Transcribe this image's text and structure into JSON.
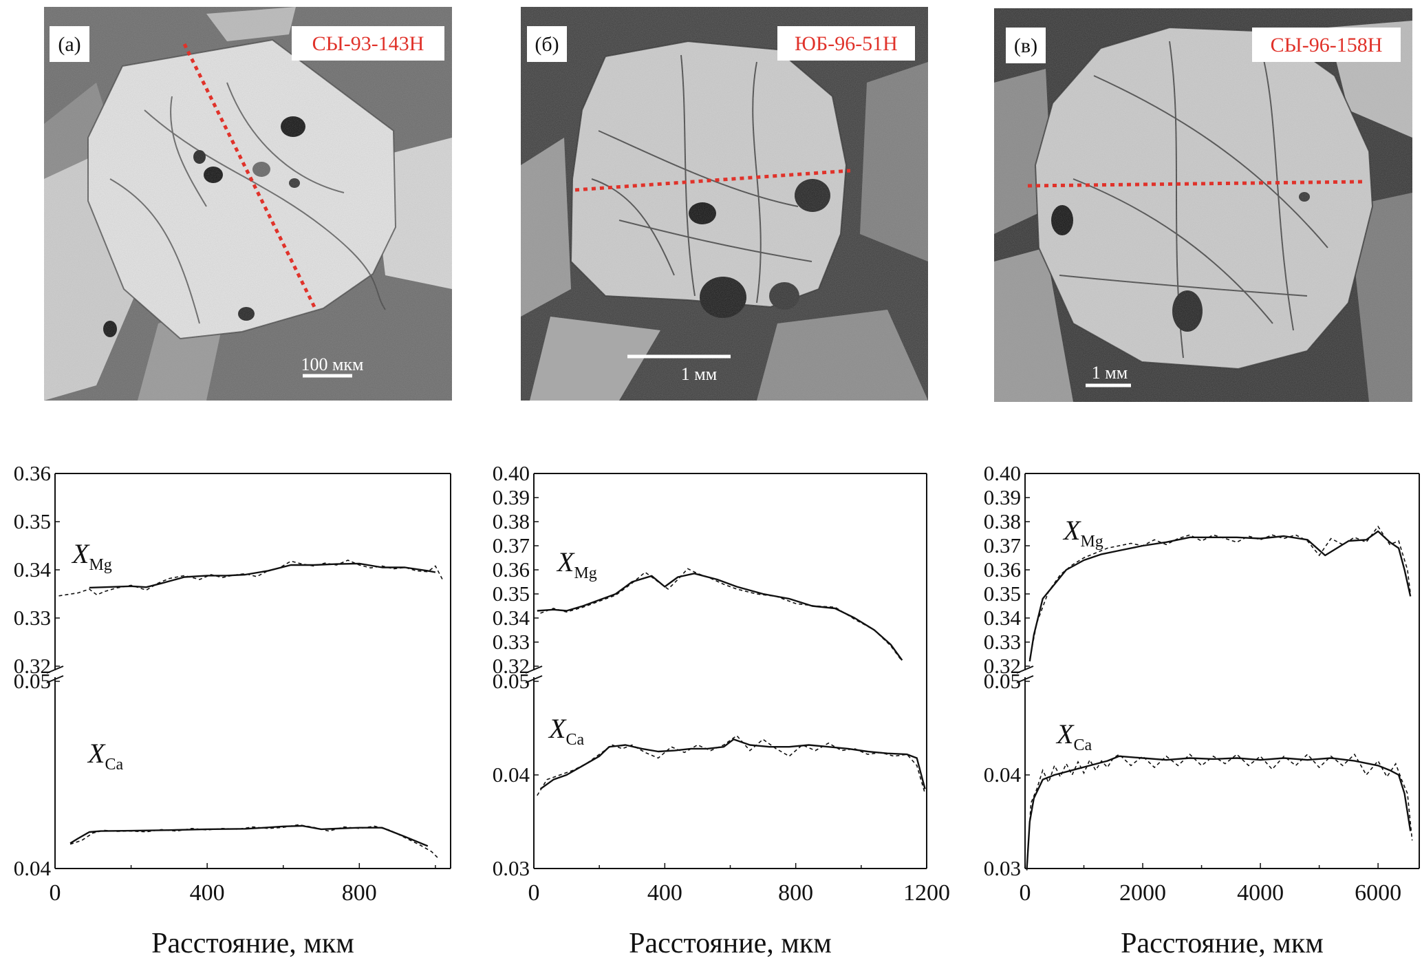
{
  "photos": [
    {
      "panel": "(а)",
      "sample": "СЫ-93-143Н",
      "scale": "100 мкм"
    },
    {
      "panel": "(б)",
      "sample": "ЮБ-96-51Н",
      "scale": "1 мм"
    },
    {
      "panel": "(в)",
      "sample": "СЫ-96-158Н",
      "scale": "1 мм"
    }
  ],
  "chart_data": [
    {
      "type": "line",
      "xlabel": "Расстояние, мкм",
      "xlim": [
        0,
        1040
      ],
      "xticks": [
        0,
        400,
        800
      ],
      "upper": {
        "ylim": [
          0.32,
          0.36
        ],
        "yticks": [
          "0.32",
          "0.33",
          "0.34",
          "0.35",
          "0.36"
        ]
      },
      "lower": {
        "ylim": [
          0.04,
          0.05
        ],
        "yticks": [
          "0.04",
          "0.05"
        ]
      },
      "series": [
        {
          "name": "XMg",
          "axis": "upper",
          "label": "X",
          "sub": "Mg",
          "x": [
            90,
            130,
            200,
            240,
            280,
            340,
            400,
            450,
            500,
            560,
            620,
            680,
            740,
            800,
            860,
            920,
            980,
            1000
          ],
          "solid": [
            0.3363,
            0.3364,
            0.3366,
            0.3364,
            0.3372,
            0.3385,
            0.3388,
            0.3388,
            0.339,
            0.3398,
            0.341,
            0.341,
            0.3412,
            0.3413,
            0.3405,
            0.3405,
            0.3398,
            0.3395
          ],
          "dashed_x": [
            10,
            60,
            90,
            110,
            130,
            160,
            200,
            240,
            270,
            300,
            340,
            380,
            410,
            440,
            470,
            500,
            530,
            560,
            590,
            620,
            650,
            680,
            710,
            740,
            770,
            800,
            830,
            860,
            890,
            920,
            950,
            980,
            1000,
            1020
          ],
          "dashed": [
            0.3346,
            0.3352,
            0.336,
            0.3348,
            0.3355,
            0.3362,
            0.3368,
            0.3358,
            0.3372,
            0.3382,
            0.3388,
            0.338,
            0.339,
            0.3384,
            0.3389,
            0.3392,
            0.3386,
            0.3398,
            0.3404,
            0.3418,
            0.3412,
            0.3408,
            0.3414,
            0.341,
            0.342,
            0.341,
            0.3404,
            0.3408,
            0.3402,
            0.3405,
            0.3398,
            0.3396,
            0.3408,
            0.3378
          ]
        },
        {
          "name": "XCa",
          "axis": "lower",
          "label": "X",
          "sub": "Ca",
          "x": [
            40,
            60,
            90,
            120,
            200,
            300,
            400,
            500,
            550,
            600,
            650,
            700,
            760,
            800,
            860,
            920,
            980
          ],
          "solid": [
            0.04135,
            0.0416,
            0.04195,
            0.042,
            0.04202,
            0.04205,
            0.0421,
            0.04212,
            0.04218,
            0.04225,
            0.04228,
            0.0421,
            0.04215,
            0.04218,
            0.04218,
            0.0417,
            0.0412
          ],
          "dashed_x": [
            40,
            70,
            100,
            130,
            160,
            200,
            240,
            280,
            320,
            360,
            400,
            440,
            480,
            520,
            560,
            600,
            640,
            680,
            720,
            760,
            800,
            840,
            880,
            920,
            960,
            990,
            1010
          ],
          "dashed": [
            0.0413,
            0.0415,
            0.0419,
            0.04204,
            0.04198,
            0.042,
            0.04196,
            0.04208,
            0.042,
            0.04214,
            0.04206,
            0.04214,
            0.0421,
            0.04222,
            0.04214,
            0.0422,
            0.04234,
            0.0422,
            0.042,
            0.04222,
            0.04214,
            0.04226,
            0.04205,
            0.04165,
            0.04125,
            0.0409,
            0.0405
          ]
        }
      ]
    },
    {
      "type": "line",
      "xlabel": "Расстояние, мкм",
      "xlim": [
        0,
        1200
      ],
      "xticks": [
        0,
        400,
        800,
        1200
      ],
      "upper": {
        "ylim": [
          0.32,
          0.4
        ],
        "yticks": [
          "0.32",
          "0.33",
          "0.34",
          "0.35",
          "0.36",
          "0.37",
          "0.38",
          "0.39",
          "0.40"
        ]
      },
      "lower": {
        "ylim": [
          0.03,
          0.05
        ],
        "yticks": [
          "0.03",
          "0.04",
          "0.05"
        ]
      },
      "series": [
        {
          "name": "XMg",
          "axis": "upper",
          "label": "X",
          "sub": "Mg",
          "x": [
            10,
            60,
            100,
            150,
            200,
            250,
            300,
            360,
            400,
            440,
            490,
            560,
            620,
            700,
            780,
            850,
            920,
            980,
            1040,
            1090,
            1125
          ],
          "solid": [
            0.343,
            0.3435,
            0.343,
            0.345,
            0.3475,
            0.35,
            0.355,
            0.3575,
            0.353,
            0.357,
            0.3585,
            0.356,
            0.353,
            0.35,
            0.348,
            0.345,
            0.344,
            0.34,
            0.335,
            0.329,
            0.3225
          ],
          "dashed_x": [
            20,
            60,
            100,
            150,
            200,
            250,
            300,
            340,
            380,
            410,
            440,
            470,
            500,
            540,
            580,
            620,
            680,
            740,
            800,
            860,
            920,
            980,
            1040,
            1090,
            1120
          ],
          "dashed": [
            0.342,
            0.344,
            0.3425,
            0.3445,
            0.347,
            0.3495,
            0.3545,
            0.359,
            0.355,
            0.352,
            0.356,
            0.3605,
            0.3585,
            0.3565,
            0.354,
            0.352,
            0.35,
            0.349,
            0.346,
            0.345,
            0.3445,
            0.3395,
            0.335,
            0.3285,
            0.323
          ]
        },
        {
          "name": "XCa",
          "axis": "lower",
          "label": "X",
          "sub": "Ca",
          "x": [
            20,
            60,
            100,
            150,
            200,
            230,
            280,
            330,
            380,
            430,
            480,
            530,
            580,
            610,
            660,
            720,
            780,
            840,
            900,
            960,
            1020,
            1080,
            1140,
            1170,
            1195
          ],
          "solid": [
            0.0385,
            0.0395,
            0.04,
            0.041,
            0.042,
            0.043,
            0.0432,
            0.0428,
            0.0425,
            0.0426,
            0.0428,
            0.0428,
            0.043,
            0.0438,
            0.0432,
            0.043,
            0.043,
            0.0432,
            0.043,
            0.0428,
            0.0425,
            0.0423,
            0.0422,
            0.0418,
            0.0385
          ],
          "dashed_x": [
            10,
            40,
            80,
            120,
            160,
            200,
            240,
            270,
            300,
            340,
            380,
            420,
            460,
            500,
            540,
            580,
            620,
            660,
            700,
            740,
            780,
            820,
            860,
            900,
            940,
            980,
            1020,
            1060,
            1100,
            1140,
            1170,
            1195
          ],
          "dashed": [
            0.0378,
            0.0395,
            0.04,
            0.0405,
            0.0412,
            0.0422,
            0.0432,
            0.0428,
            0.0432,
            0.0424,
            0.0418,
            0.043,
            0.0424,
            0.0432,
            0.0426,
            0.0432,
            0.0442,
            0.0426,
            0.0438,
            0.0428,
            0.042,
            0.0432,
            0.0426,
            0.0434,
            0.0426,
            0.0428,
            0.0422,
            0.0424,
            0.042,
            0.0422,
            0.041,
            0.038
          ]
        }
      ]
    },
    {
      "type": "line",
      "xlabel": "Расстояние, мкм",
      "xlim": [
        0,
        6700
      ],
      "xticks": [
        0,
        2000,
        4000,
        6000
      ],
      "upper": {
        "ylim": [
          0.32,
          0.4
        ],
        "yticks": [
          "0.32",
          "0.33",
          "0.34",
          "0.35",
          "0.36",
          "0.37",
          "0.38",
          "0.39",
          "0.40"
        ]
      },
      "lower": {
        "ylim": [
          0.03,
          0.05
        ],
        "yticks": [
          "0.03",
          "0.04",
          "0.05"
        ]
      },
      "series": [
        {
          "name": "XMg",
          "axis": "upper",
          "label": "X",
          "sub": "Mg",
          "x": [
            80,
            150,
            300,
            500,
            700,
            1000,
            1300,
            1600,
            2000,
            2400,
            2800,
            3200,
            3600,
            4000,
            4400,
            4800,
            5100,
            5500,
            5800,
            6000,
            6200,
            6350,
            6450,
            6550
          ],
          "solid": [
            0.322,
            0.333,
            0.348,
            0.354,
            0.36,
            0.364,
            0.3665,
            0.368,
            0.37,
            0.3715,
            0.3735,
            0.3735,
            0.3735,
            0.373,
            0.374,
            0.3725,
            0.366,
            0.372,
            0.3725,
            0.376,
            0.3715,
            0.369,
            0.36,
            0.349
          ],
          "dashed_x": [
            80,
            200,
            400,
            600,
            800,
            1000,
            1200,
            1400,
            1600,
            1800,
            2000,
            2200,
            2400,
            2600,
            2800,
            3000,
            3200,
            3400,
            3600,
            3800,
            4000,
            4200,
            4400,
            4600,
            4800,
            5000,
            5200,
            5400,
            5600,
            5800,
            6000,
            6200,
            6350,
            6500,
            6550
          ],
          "dashed": [
            0.323,
            0.338,
            0.351,
            0.358,
            0.362,
            0.365,
            0.367,
            0.369,
            0.37,
            0.371,
            0.37,
            0.3725,
            0.3705,
            0.373,
            0.3745,
            0.372,
            0.3745,
            0.373,
            0.3715,
            0.374,
            0.3725,
            0.3745,
            0.373,
            0.3745,
            0.372,
            0.366,
            0.373,
            0.3705,
            0.3735,
            0.3715,
            0.378,
            0.3705,
            0.372,
            0.36,
            0.35
          ]
        },
        {
          "name": "XCa",
          "axis": "lower",
          "label": "X",
          "sub": "Ca",
          "x": [
            30,
            80,
            150,
            300,
            500,
            800,
            1100,
            1400,
            1600,
            2000,
            2400,
            2800,
            3200,
            3600,
            4000,
            4400,
            4800,
            5200,
            5600,
            6000,
            6200,
            6350,
            6450,
            6550
          ],
          "solid": [
            0.03,
            0.035,
            0.0375,
            0.0395,
            0.04,
            0.0405,
            0.041,
            0.0415,
            0.042,
            0.0418,
            0.0416,
            0.0418,
            0.0417,
            0.0418,
            0.0416,
            0.0418,
            0.0416,
            0.0418,
            0.0415,
            0.041,
            0.0405,
            0.04,
            0.038,
            0.034
          ],
          "dashed_x": [
            30,
            60,
            100,
            200,
            300,
            400,
            500,
            600,
            700,
            800,
            900,
            1000,
            1100,
            1200,
            1300,
            1400,
            1500,
            1600,
            1800,
            2000,
            2200,
            2400,
            2600,
            2800,
            3000,
            3200,
            3400,
            3600,
            3800,
            4000,
            4200,
            4400,
            4600,
            4800,
            5000,
            5200,
            5400,
            5600,
            5800,
            6000,
            6150,
            6300,
            6400,
            6500,
            6580
          ],
          "dashed": [
            0.0298,
            0.033,
            0.037,
            0.0385,
            0.0405,
            0.0392,
            0.041,
            0.0398,
            0.0412,
            0.04,
            0.0414,
            0.0402,
            0.0416,
            0.0405,
            0.0415,
            0.0408,
            0.0418,
            0.0422,
            0.041,
            0.042,
            0.0408,
            0.042,
            0.041,
            0.0422,
            0.041,
            0.042,
            0.0412,
            0.0422,
            0.041,
            0.042,
            0.0406,
            0.042,
            0.041,
            0.0422,
            0.0408,
            0.042,
            0.041,
            0.0422,
            0.04,
            0.0415,
            0.0398,
            0.0412,
            0.0395,
            0.038,
            0.033
          ]
        }
      ]
    }
  ]
}
